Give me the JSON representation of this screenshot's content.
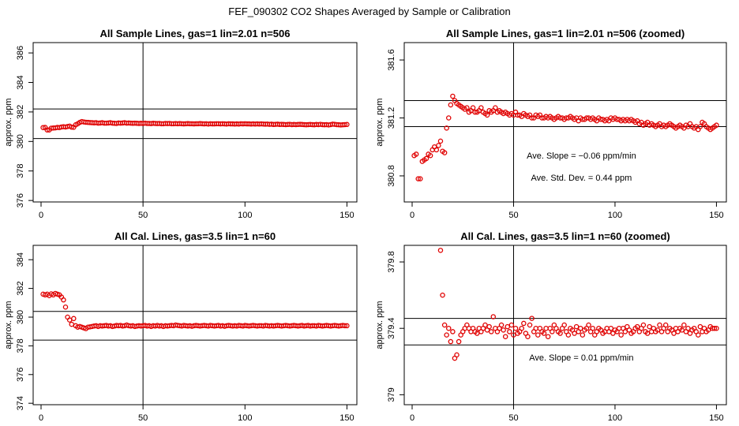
{
  "page_title": "FEF_090302  CO2 Shapes Averaged by Sample or Calibration",
  "chart_data": [
    {
      "type": "scatter",
      "title": "All Sample Lines, gas=1 lin=2.01 n=506",
      "xlabel": "",
      "ylabel": "approx. ppm",
      "xlim": [
        0,
        151
      ],
      "ylim": [
        375.9,
        386.7
      ],
      "xticks": [
        0,
        50,
        100,
        150
      ],
      "yticks": [
        376,
        378,
        380,
        382,
        384,
        386
      ],
      "hlines": [
        380.2,
        382.2
      ],
      "vline": 50,
      "point_color": "#e00000",
      "annotations": [],
      "x": [
        1,
        2,
        3,
        4,
        5,
        6,
        7,
        8,
        9,
        10,
        11,
        12,
        13,
        14,
        15,
        16,
        17,
        18,
        19,
        20,
        21,
        22,
        23,
        24,
        25,
        26,
        27,
        28,
        29,
        30,
        31,
        32,
        33,
        34,
        35,
        36,
        37,
        38,
        39,
        40,
        41,
        42,
        43,
        44,
        45,
        46,
        47,
        48,
        49,
        50,
        51,
        52,
        53,
        54,
        55,
        56,
        57,
        58,
        59,
        60,
        61,
        62,
        63,
        64,
        65,
        66,
        67,
        68,
        69,
        70,
        71,
        72,
        73,
        74,
        75,
        76,
        77,
        78,
        79,
        80,
        81,
        82,
        83,
        84,
        85,
        86,
        87,
        88,
        89,
        90,
        91,
        92,
        93,
        94,
        95,
        96,
        97,
        98,
        99,
        100,
        101,
        102,
        103,
        104,
        105,
        106,
        107,
        108,
        109,
        110,
        111,
        112,
        113,
        114,
        115,
        116,
        117,
        118,
        119,
        120,
        121,
        122,
        123,
        124,
        125,
        126,
        127,
        128,
        129,
        130,
        131,
        132,
        133,
        134,
        135,
        136,
        137,
        138,
        139,
        140,
        141,
        142,
        143,
        144,
        145,
        146,
        147,
        148,
        149,
        150
      ],
      "y": [
        380.94,
        380.95,
        380.78,
        380.78,
        380.9,
        380.91,
        380.92,
        380.95,
        380.94,
        380.98,
        381.0,
        380.98,
        381.01,
        381.04,
        380.97,
        380.96,
        381.13,
        381.2,
        381.29,
        381.35,
        381.32,
        381.3,
        381.29,
        381.28,
        381.27,
        381.26,
        381.27,
        381.24,
        381.25,
        381.27,
        381.24,
        381.24,
        381.25,
        381.27,
        381.24,
        381.23,
        381.22,
        381.25,
        381.24,
        381.25,
        381.27,
        381.24,
        381.25,
        381.24,
        381.23,
        381.24,
        381.23,
        381.22,
        381.23,
        381.22,
        381.24,
        381.22,
        381.22,
        381.21,
        381.23,
        381.22,
        381.21,
        381.22,
        381.2,
        381.2,
        381.22,
        381.21,
        381.22,
        381.2,
        381.2,
        381.21,
        381.2,
        381.21,
        381.2,
        381.19,
        381.2,
        381.21,
        381.2,
        381.2,
        381.19,
        381.2,
        381.2,
        381.21,
        381.2,
        381.19,
        381.2,
        381.18,
        381.2,
        381.19,
        381.19,
        381.2,
        381.2,
        381.19,
        381.2,
        381.19,
        381.18,
        381.2,
        381.19,
        381.19,
        381.18,
        381.19,
        381.18,
        381.2,
        381.19,
        381.2,
        381.19,
        381.19,
        381.18,
        381.19,
        381.18,
        381.19,
        381.18,
        381.19,
        381.18,
        381.17,
        381.18,
        381.16,
        381.17,
        381.15,
        381.16,
        381.17,
        381.15,
        381.16,
        381.15,
        381.14,
        381.15,
        381.16,
        381.14,
        381.15,
        381.14,
        381.15,
        381.16,
        381.15,
        381.14,
        381.13,
        381.14,
        381.15,
        381.14,
        381.13,
        381.15,
        381.14,
        381.16,
        381.14,
        381.13,
        381.14,
        381.12,
        381.14,
        381.17,
        381.16,
        381.14,
        381.13,
        381.12,
        381.13,
        381.14,
        381.15
      ]
    },
    {
      "type": "scatter",
      "title": "All Sample Lines, gas=1 lin=2.01 n=506 (zoomed)",
      "xlabel": "",
      "ylabel": "approx. ppm",
      "xlim": [
        0,
        151
      ],
      "ylim": [
        380.62,
        381.72
      ],
      "xticks": [
        0,
        50,
        100,
        150
      ],
      "yticks": [
        380.8,
        381.2,
        381.6
      ],
      "hlines": [
        381.14,
        381.32
      ],
      "vline": 50,
      "point_color": "#e00000",
      "annotations": [
        "Ave. Slope =  −0.06  ppm/min",
        "Ave. Std. Dev. =  0.44  ppm"
      ],
      "x": [
        1,
        2,
        3,
        4,
        5,
        6,
        7,
        8,
        9,
        10,
        11,
        12,
        13,
        14,
        15,
        16,
        17,
        18,
        19,
        20,
        21,
        22,
        23,
        24,
        25,
        26,
        27,
        28,
        29,
        30,
        31,
        32,
        33,
        34,
        35,
        36,
        37,
        38,
        39,
        40,
        41,
        42,
        43,
        44,
        45,
        46,
        47,
        48,
        49,
        50,
        51,
        52,
        53,
        54,
        55,
        56,
        57,
        58,
        59,
        60,
        61,
        62,
        63,
        64,
        65,
        66,
        67,
        68,
        69,
        70,
        71,
        72,
        73,
        74,
        75,
        76,
        77,
        78,
        79,
        80,
        81,
        82,
        83,
        84,
        85,
        86,
        87,
        88,
        89,
        90,
        91,
        92,
        93,
        94,
        95,
        96,
        97,
        98,
        99,
        100,
        101,
        102,
        103,
        104,
        105,
        106,
        107,
        108,
        109,
        110,
        111,
        112,
        113,
        114,
        115,
        116,
        117,
        118,
        119,
        120,
        121,
        122,
        123,
        124,
        125,
        126,
        127,
        128,
        129,
        130,
        131,
        132,
        133,
        134,
        135,
        136,
        137,
        138,
        139,
        140,
        141,
        142,
        143,
        144,
        145,
        146,
        147,
        148,
        149,
        150
      ],
      "y": [
        380.94,
        380.95,
        380.78,
        380.78,
        380.9,
        380.91,
        380.92,
        380.95,
        380.94,
        380.98,
        381.0,
        380.98,
        381.01,
        381.04,
        380.97,
        380.96,
        381.13,
        381.2,
        381.29,
        381.35,
        381.32,
        381.3,
        381.29,
        381.28,
        381.27,
        381.26,
        381.27,
        381.24,
        381.25,
        381.27,
        381.24,
        381.24,
        381.25,
        381.27,
        381.24,
        381.23,
        381.22,
        381.25,
        381.24,
        381.25,
        381.27,
        381.24,
        381.25,
        381.24,
        381.23,
        381.24,
        381.23,
        381.22,
        381.23,
        381.22,
        381.24,
        381.22,
        381.22,
        381.21,
        381.23,
        381.22,
        381.21,
        381.22,
        381.2,
        381.2,
        381.22,
        381.21,
        381.22,
        381.2,
        381.2,
        381.21,
        381.2,
        381.21,
        381.2,
        381.19,
        381.2,
        381.21,
        381.2,
        381.2,
        381.19,
        381.2,
        381.2,
        381.21,
        381.2,
        381.19,
        381.2,
        381.18,
        381.2,
        381.19,
        381.19,
        381.2,
        381.2,
        381.19,
        381.2,
        381.19,
        381.18,
        381.2,
        381.19,
        381.19,
        381.18,
        381.19,
        381.18,
        381.2,
        381.19,
        381.2,
        381.19,
        381.19,
        381.18,
        381.19,
        381.18,
        381.19,
        381.18,
        381.19,
        381.18,
        381.17,
        381.18,
        381.16,
        381.17,
        381.15,
        381.16,
        381.17,
        381.15,
        381.16,
        381.15,
        381.14,
        381.15,
        381.16,
        381.14,
        381.15,
        381.14,
        381.15,
        381.16,
        381.15,
        381.14,
        381.13,
        381.14,
        381.15,
        381.14,
        381.13,
        381.15,
        381.14,
        381.16,
        381.14,
        381.13,
        381.14,
        381.12,
        381.14,
        381.17,
        381.16,
        381.14,
        381.13,
        381.12,
        381.13,
        381.14,
        381.15
      ]
    },
    {
      "type": "scatter",
      "title": "All Cal. Lines, gas=3.5 lin=1 n=60",
      "xlabel": "",
      "ylabel": "approx. ppm",
      "xlim": [
        0,
        151
      ],
      "ylim": [
        373.9,
        385.0
      ],
      "xticks": [
        0,
        50,
        100,
        150
      ],
      "yticks": [
        374,
        376,
        378,
        380,
        382,
        384
      ],
      "hlines": [
        378.4,
        380.4
      ],
      "vline": 50,
      "point_color": "#e00000",
      "annotations": [],
      "x": [
        1,
        2,
        3,
        4,
        5,
        6,
        7,
        8,
        9,
        10,
        11,
        12,
        13,
        14,
        15,
        16,
        17,
        18,
        19,
        20,
        21,
        22,
        23,
        24,
        25,
        26,
        27,
        28,
        29,
        30,
        31,
        32,
        33,
        34,
        35,
        36,
        37,
        38,
        39,
        40,
        41,
        42,
        43,
        44,
        45,
        46,
        47,
        48,
        49,
        50,
        51,
        52,
        53,
        54,
        55,
        56,
        57,
        58,
        59,
        60,
        61,
        62,
        63,
        64,
        65,
        66,
        67,
        68,
        69,
        70,
        71,
        72,
        73,
        74,
        75,
        76,
        77,
        78,
        79,
        80,
        81,
        82,
        83,
        84,
        85,
        86,
        87,
        88,
        89,
        90,
        91,
        92,
        93,
        94,
        95,
        96,
        97,
        98,
        99,
        100,
        101,
        102,
        103,
        104,
        105,
        106,
        107,
        108,
        109,
        110,
        111,
        112,
        113,
        114,
        115,
        116,
        117,
        118,
        119,
        120,
        121,
        122,
        123,
        124,
        125,
        126,
        127,
        128,
        129,
        130,
        131,
        132,
        133,
        134,
        135,
        136,
        137,
        138,
        139,
        140,
        141,
        142,
        143,
        144,
        145,
        146,
        147,
        148,
        149,
        150
      ],
      "y": [
        381.6,
        381.55,
        381.6,
        381.5,
        381.62,
        381.55,
        381.65,
        381.6,
        381.55,
        381.4,
        381.2,
        380.7,
        380.0,
        379.8,
        379.5,
        379.9,
        379.4,
        379.3,
        379.35,
        379.3,
        379.25,
        379.2,
        379.3,
        379.32,
        379.35,
        379.38,
        379.4,
        379.35,
        379.4,
        379.38,
        379.4,
        379.42,
        379.38,
        379.4,
        379.35,
        379.38,
        379.42,
        379.4,
        379.42,
        379.38,
        379.4,
        379.45,
        379.4,
        379.38,
        379.4,
        379.35,
        379.38,
        379.4,
        379.38,
        379.4,
        379.42,
        379.38,
        379.4,
        379.35,
        379.4,
        379.38,
        379.42,
        379.38,
        379.4,
        379.35,
        379.4,
        379.38,
        379.4,
        379.42,
        379.4,
        379.45,
        379.42,
        379.4,
        379.38,
        379.42,
        379.4,
        379.38,
        379.4,
        379.36,
        379.4,
        379.42,
        379.4,
        379.38,
        379.4,
        379.42,
        379.4,
        379.38,
        379.42,
        379.4,
        379.38,
        379.4,
        379.42,
        379.38,
        379.4,
        379.36,
        379.4,
        379.42,
        379.4,
        379.38,
        379.4,
        379.38,
        379.42,
        379.4,
        379.38,
        379.42,
        379.4,
        379.38,
        379.4,
        379.42,
        379.4,
        379.38,
        379.4,
        379.4,
        379.38,
        379.42,
        379.4,
        379.38,
        379.4,
        379.38,
        379.4,
        379.42,
        379.4,
        379.38,
        379.4,
        379.42,
        379.4,
        379.38,
        379.4,
        379.42,
        379.4,
        379.38,
        379.4,
        379.42,
        379.38,
        379.4,
        379.42,
        379.38,
        379.4,
        379.4,
        379.38,
        379.42,
        379.4,
        379.38,
        379.4,
        379.42,
        379.4,
        379.38,
        379.4,
        379.42,
        379.4,
        379.38,
        379.4,
        379.42,
        379.4,
        379.4
      ]
    },
    {
      "type": "scatter",
      "title": "All Cal. Lines, gas=3.5 lin=1 n=60 (zoomed)",
      "xlabel": "",
      "ylabel": "approx. ppm",
      "xlim": [
        0,
        151
      ],
      "ylim": [
        378.94,
        379.9
      ],
      "xticks": [
        0,
        50,
        100,
        150
      ],
      "yticks": [
        379.0,
        379.4,
        379.8
      ],
      "hlines": [
        379.3,
        379.46
      ],
      "vline": 50,
      "point_color": "#e00000",
      "annotations": [
        "Ave. Slope =  0.01  ppm/min"
      ],
      "x": [
        14,
        15,
        16,
        17,
        18,
        19,
        20,
        21,
        22,
        23,
        24,
        25,
        26,
        27,
        28,
        29,
        30,
        31,
        32,
        33,
        34,
        35,
        36,
        37,
        38,
        39,
        40,
        41,
        42,
        43,
        44,
        45,
        46,
        47,
        48,
        49,
        50,
        51,
        52,
        53,
        54,
        55,
        56,
        57,
        58,
        59,
        60,
        61,
        62,
        63,
        64,
        65,
        66,
        67,
        68,
        69,
        70,
        71,
        72,
        73,
        74,
        75,
        76,
        77,
        78,
        79,
        80,
        81,
        82,
        83,
        84,
        85,
        86,
        87,
        88,
        89,
        90,
        91,
        92,
        93,
        94,
        95,
        96,
        97,
        98,
        99,
        100,
        101,
        102,
        103,
        104,
        105,
        106,
        107,
        108,
        109,
        110,
        111,
        112,
        113,
        114,
        115,
        116,
        117,
        118,
        119,
        120,
        121,
        122,
        123,
        124,
        125,
        126,
        127,
        128,
        129,
        130,
        131,
        132,
        133,
        134,
        135,
        136,
        137,
        138,
        139,
        140,
        141,
        142,
        143,
        144,
        145,
        146,
        147,
        148,
        149,
        150
      ],
      "y": [
        379.87,
        379.6,
        379.42,
        379.36,
        379.4,
        379.32,
        379.38,
        379.22,
        379.24,
        379.32,
        379.36,
        379.38,
        379.4,
        379.42,
        379.4,
        379.38,
        379.4,
        379.38,
        379.37,
        379.4,
        379.38,
        379.4,
        379.42,
        379.39,
        379.41,
        379.38,
        379.47,
        379.4,
        379.38,
        379.4,
        379.42,
        379.39,
        379.35,
        379.41,
        379.38,
        379.42,
        379.36,
        379.4,
        379.37,
        379.38,
        379.4,
        379.43,
        379.37,
        379.35,
        379.42,
        379.46,
        379.38,
        379.4,
        379.36,
        379.4,
        379.38,
        379.37,
        379.4,
        379.35,
        379.4,
        379.38,
        379.42,
        379.4,
        379.38,
        379.37,
        379.4,
        379.42,
        379.38,
        379.36,
        379.4,
        379.39,
        379.37,
        379.41,
        379.38,
        379.4,
        379.36,
        379.39,
        379.4,
        379.42,
        379.38,
        379.4,
        379.36,
        379.38,
        379.4,
        379.39,
        379.37,
        379.38,
        379.4,
        379.38,
        379.4,
        379.37,
        379.39,
        379.38,
        379.4,
        379.36,
        379.4,
        379.38,
        379.41,
        379.39,
        379.37,
        379.38,
        379.4,
        379.41,
        379.38,
        379.4,
        379.42,
        379.38,
        379.37,
        379.41,
        379.38,
        379.4,
        379.38,
        379.39,
        379.42,
        379.38,
        379.4,
        379.42,
        379.38,
        379.4,
        379.39,
        379.37,
        379.4,
        379.38,
        379.4,
        379.39,
        379.42,
        379.38,
        379.4,
        379.37,
        379.39,
        379.4,
        379.38,
        379.36,
        379.41,
        379.38,
        379.4,
        379.38,
        379.39,
        379.41,
        379.4,
        379.4,
        379.4
      ]
    }
  ]
}
